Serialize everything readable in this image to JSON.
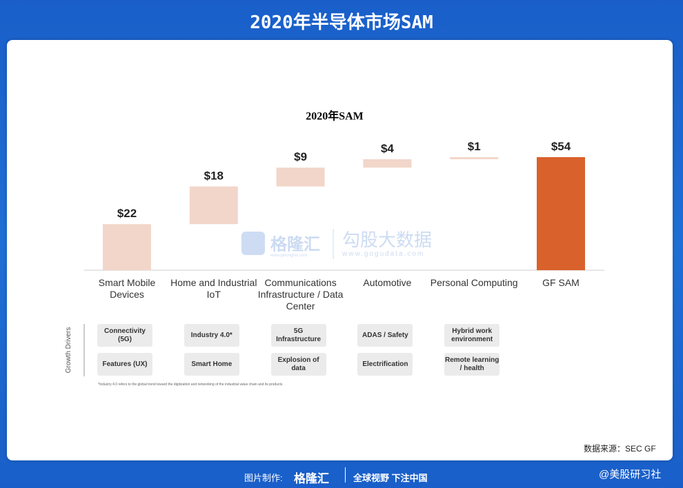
{
  "header": {
    "title": "2020年半导体市场SAM"
  },
  "chart_data": {
    "type": "waterfall",
    "title": "2020年SAM",
    "categories": [
      "Smart Mobile Devices",
      "Home and Industrial IoT",
      "Communications Infrastructure / Data Center",
      "Automotive",
      "Personal Computing",
      "GF SAM"
    ],
    "values": [
      22,
      18,
      9,
      4,
      1,
      54
    ],
    "value_labels": [
      "$22",
      "$18",
      "$9",
      "$4",
      "$1",
      "$54"
    ],
    "color": "#f2d6ca",
    "total_color": "#d9612b"
  },
  "drivers": {
    "label": "Growth Drivers",
    "columns": [
      [
        "Connectivity (5G)",
        "Features (UX)"
      ],
      [
        "Industry 4.0*",
        "Smart Home"
      ],
      [
        "5G Infrastructure",
        "Explosion of data"
      ],
      [
        "ADAS / Safety",
        "Electrification"
      ],
      [
        "Hybrid work environment",
        "Remote learning / health"
      ]
    ]
  },
  "footnote": "*Industry 4.0 refers to the global trend toward the digitization and networking of the industrial value chain and its products",
  "source": "数据来源：SEC GF",
  "watermark": {
    "brand": "格隆汇",
    "brand_url": "www.gelonghui.com",
    "name": "勾股大数据",
    "url": "www.gogudata.com"
  },
  "footer": {
    "made_by": "图片制作:",
    "brand": "格隆汇",
    "slogan": "全球视野 下注中国",
    "handle": "@美股研习社"
  }
}
